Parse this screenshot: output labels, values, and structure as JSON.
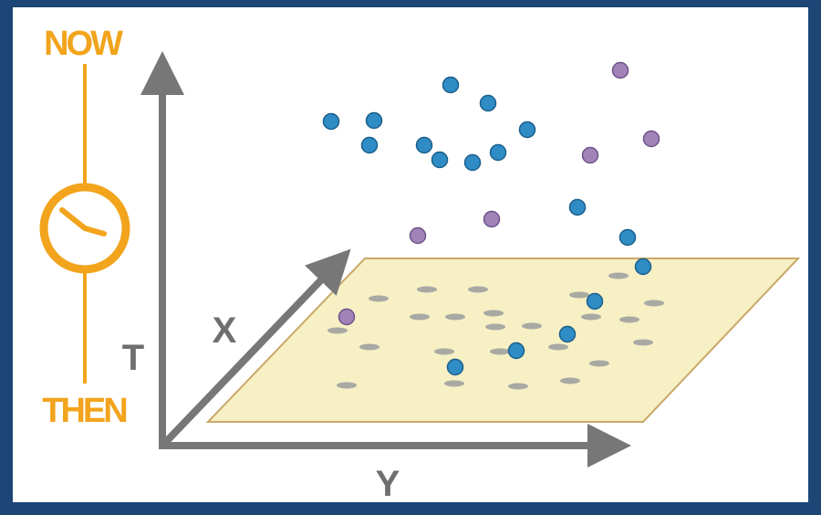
{
  "labels": {
    "now": "NOW",
    "then": "THEN",
    "t_axis": "T",
    "x_axis": "X",
    "y_axis": "Y"
  }
}
